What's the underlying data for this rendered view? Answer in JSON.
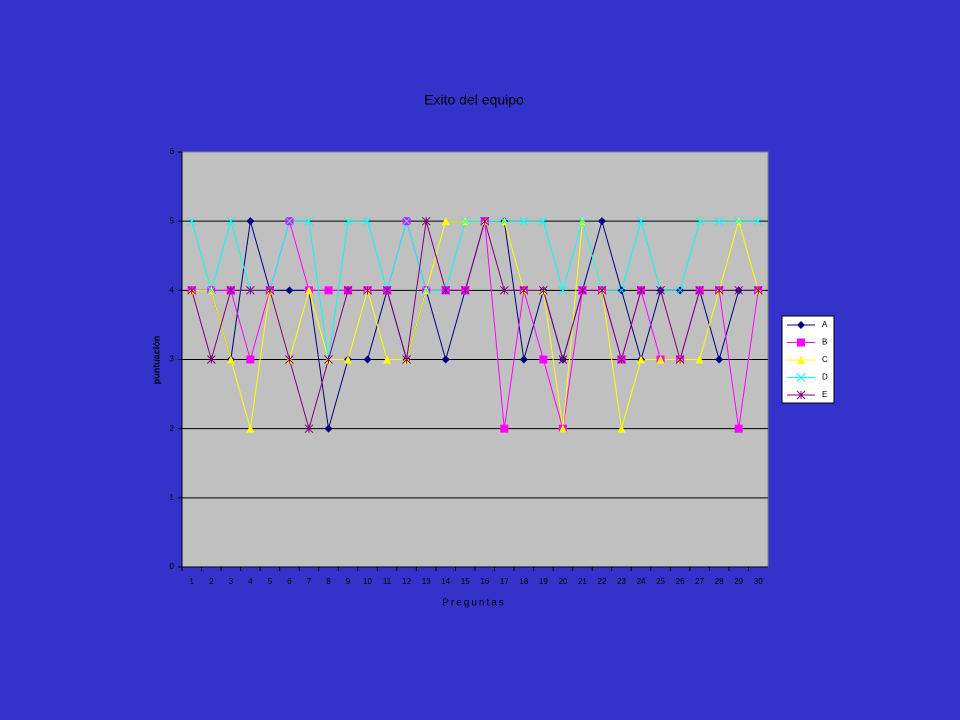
{
  "chart_data": {
    "type": "line",
    "title": "Exito del equipo",
    "x_label": "Preguntas",
    "y_label": "puntuación",
    "categories": [
      "1",
      "2",
      "3",
      "4",
      "5",
      "6",
      "7",
      "8",
      "9",
      "10",
      "11",
      "12",
      "13",
      "14",
      "15",
      "16",
      "17",
      "18",
      "19",
      "20",
      "21",
      "22",
      "23",
      "24",
      "25",
      "26",
      "27",
      "28",
      "29",
      "30"
    ],
    "ylim": [
      0,
      6
    ],
    "yticks": [
      0,
      1,
      2,
      3,
      4,
      5,
      6
    ],
    "grid": true,
    "legend": "right",
    "series": [
      {
        "name": "A",
        "color": "#000080",
        "marker": "diamond",
        "values": [
          4,
          4,
          3,
          5,
          4,
          4,
          4,
          2,
          3,
          3,
          4,
          3,
          4,
          3,
          4,
          5,
          5,
          3,
          4,
          3,
          4,
          5,
          4,
          3,
          4,
          4,
          4,
          3,
          4,
          4
        ]
      },
      {
        "name": "B",
        "color": "#ff00ff",
        "marker": "square",
        "values": [
          4,
          4,
          4,
          3,
          4,
          5,
          4,
          4,
          4,
          4,
          4,
          5,
          4,
          4,
          4,
          5,
          2,
          4,
          3,
          2,
          4,
          4,
          3,
          4,
          3,
          3,
          4,
          4,
          2,
          4
        ]
      },
      {
        "name": "C",
        "color": "#ffff00",
        "marker": "triangle",
        "values": [
          4,
          4,
          3,
          2,
          4,
          3,
          4,
          3,
          3,
          4,
          3,
          3,
          4,
          5,
          5,
          5,
          5,
          4,
          4,
          2,
          5,
          4,
          2,
          3,
          3,
          3,
          3,
          4,
          5,
          4
        ]
      },
      {
        "name": "D",
        "color": "#00ffff",
        "marker": "x",
        "values": [
          5,
          4,
          5,
          4,
          4,
          5,
          5,
          3,
          5,
          5,
          4,
          5,
          4,
          4,
          5,
          5,
          5,
          5,
          5,
          4,
          5,
          4,
          4,
          5,
          4,
          4,
          5,
          5,
          5,
          5
        ]
      },
      {
        "name": "E",
        "color": "#800080",
        "marker": "star",
        "values": [
          4,
          3,
          4,
          4,
          4,
          3,
          2,
          3,
          4,
          4,
          4,
          3,
          5,
          4,
          4,
          5,
          4,
          4,
          4,
          3,
          4,
          4,
          3,
          4,
          4,
          3,
          4,
          4,
          4,
          4
        ]
      }
    ]
  }
}
